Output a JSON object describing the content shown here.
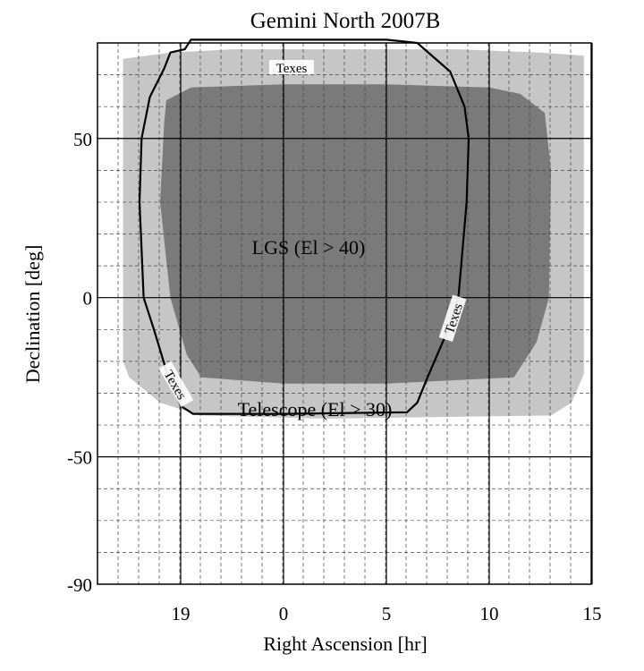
{
  "chart_data": {
    "type": "area",
    "title": "Gemini North 2007B",
    "xlabel": "Right Ascension [hr]",
    "ylabel": "Declination [deg]",
    "x_axis": {
      "range": [
        16,
        15
      ],
      "ticks": [
        {
          "value": 19,
          "label": "19"
        },
        {
          "value": 0,
          "label": "0"
        },
        {
          "value": 5,
          "label": "5"
        },
        {
          "value": 10,
          "label": "10"
        },
        {
          "value": 15,
          "label": "15"
        }
      ],
      "note": "RA axis wraps through 24h/0h; hours run 16 → 24=0 → 15"
    },
    "y_axis": {
      "range": [
        -90,
        80
      ],
      "ticks": [
        {
          "value": 50,
          "label": "50"
        },
        {
          "value": 0,
          "label": "0"
        },
        {
          "value": -50,
          "label": "-50"
        },
        {
          "value": -90,
          "label": "-90"
        }
      ]
    },
    "grid": true,
    "regions": [
      {
        "name": "Telescope (El > 30)",
        "label": "Telescope (El > 30)",
        "color": "#c6c6c6",
        "boundary_ra_dec": [
          [
            16.2,
            75
          ],
          [
            18.5,
            77
          ],
          [
            21.5,
            78
          ],
          [
            3.5,
            78
          ],
          [
            8.5,
            78
          ],
          [
            12.5,
            77
          ],
          [
            14.6,
            76
          ],
          [
            14.6,
            -24
          ],
          [
            14.0,
            -33
          ],
          [
            13.0,
            -37
          ],
          [
            2.0,
            -38
          ],
          [
            20.0,
            -37
          ],
          [
            18.0,
            -33
          ],
          [
            16.5,
            -25
          ],
          [
            16.2,
            -20
          ]
        ]
      },
      {
        "name": "LGS (El > 40)",
        "label": "LGS (El > 40)",
        "color": "#7a7a7a",
        "boundary_ra_dec": [
          [
            18.3,
            62
          ],
          [
            19.5,
            66
          ],
          [
            0,
            67
          ],
          [
            5,
            67
          ],
          [
            10,
            66
          ],
          [
            11.5,
            64
          ],
          [
            12.7,
            58
          ],
          [
            13.0,
            40
          ],
          [
            12.9,
            0
          ],
          [
            12.3,
            -14
          ],
          [
            11.2,
            -25
          ],
          [
            5,
            -27
          ],
          [
            0,
            -27
          ],
          [
            20.0,
            -25
          ],
          [
            19.3,
            -18
          ],
          [
            18.5,
            0
          ],
          [
            18.0,
            30
          ],
          [
            18.2,
            55
          ]
        ]
      }
    ],
    "contours": [
      {
        "name": "Texes",
        "labels": [
          "Texes",
          "Texes",
          "Texes"
        ],
        "color": "#000000",
        "path_ra_dec": [
          [
            19.5,
            81
          ],
          [
            0,
            81
          ],
          [
            5,
            81
          ],
          [
            6.5,
            80
          ],
          [
            8.1,
            71
          ],
          [
            8.8,
            60
          ],
          [
            9.0,
            50
          ],
          [
            8.9,
            30
          ],
          [
            8.5,
            0
          ],
          [
            8.0,
            -10
          ],
          [
            7.0,
            -25
          ],
          [
            6.5,
            -33
          ],
          [
            6.0,
            -36
          ],
          [
            0,
            -36.5
          ],
          [
            19.6,
            -36.5
          ],
          [
            19.0,
            -34
          ],
          [
            18.4,
            -25
          ],
          [
            17.7,
            -10
          ],
          [
            17.2,
            0
          ],
          [
            17.0,
            30
          ],
          [
            17.1,
            50
          ],
          [
            17.5,
            63
          ],
          [
            18.2,
            72
          ],
          [
            18.5,
            77
          ],
          [
            19.2,
            78
          ],
          [
            19.5,
            81
          ]
        ]
      }
    ]
  }
}
